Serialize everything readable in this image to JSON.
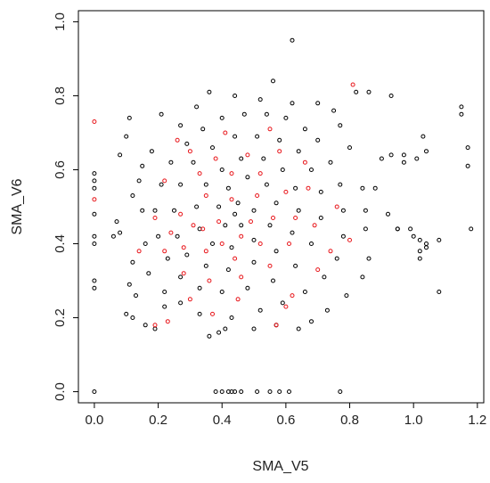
{
  "chart_data": {
    "type": "scatter",
    "title": "",
    "xlabel": "SMA_V5",
    "ylabel": "SMA_V6",
    "xlim": [
      -0.05,
      1.22
    ],
    "ylim": [
      -0.03,
      1.03
    ],
    "x_ticks": [
      0.0,
      0.2,
      0.4,
      0.6,
      0.8,
      1.0,
      1.2
    ],
    "x_tick_labels": [
      "0.0",
      "0.2",
      "0.4",
      "0.6",
      "0.8",
      "1.0",
      "1.2"
    ],
    "y_ticks": [
      0.0,
      0.2,
      0.4,
      0.6,
      0.8,
      1.0
    ],
    "y_tick_labels": [
      "0.0",
      "0.2",
      "0.4",
      "0.6",
      "0.8",
      "1.0"
    ],
    "grid": false,
    "legend": "none",
    "marker": "open-circle",
    "series": [
      {
        "color": "#000000",
        "points": [
          [
            0.0,
            0.0
          ],
          [
            0.0,
            0.28
          ],
          [
            0.0,
            0.3
          ],
          [
            0.0,
            0.4
          ],
          [
            0.0,
            0.42
          ],
          [
            0.0,
            0.48
          ],
          [
            0.0,
            0.55
          ],
          [
            0.0,
            0.57
          ],
          [
            0.0,
            0.59
          ],
          [
            0.38,
            0.0
          ],
          [
            0.4,
            0.0
          ],
          [
            0.42,
            0.0
          ],
          [
            0.43,
            0.0
          ],
          [
            0.44,
            0.0
          ],
          [
            0.46,
            0.0
          ],
          [
            0.51,
            0.0
          ],
          [
            0.55,
            0.0
          ],
          [
            0.58,
            0.0
          ],
          [
            0.61,
            0.0
          ],
          [
            0.77,
            0.0
          ],
          [
            0.62,
            0.95
          ],
          [
            0.56,
            0.84
          ],
          [
            0.82,
            0.81
          ],
          [
            0.86,
            0.81
          ],
          [
            0.93,
            0.8
          ],
          [
            0.9,
            0.63
          ],
          [
            0.93,
            0.64
          ],
          [
            0.97,
            0.64
          ],
          [
            0.97,
            0.62
          ],
          [
            1.01,
            0.63
          ],
          [
            1.03,
            0.69
          ],
          [
            1.04,
            0.65
          ],
          [
            1.15,
            0.77
          ],
          [
            1.15,
            0.75
          ],
          [
            1.17,
            0.66
          ],
          [
            1.17,
            0.61
          ],
          [
            0.95,
            0.44
          ],
          [
            0.99,
            0.44
          ],
          [
            1.0,
            0.42
          ],
          [
            1.02,
            0.41
          ],
          [
            1.02,
            0.38
          ],
          [
            1.02,
            0.36
          ],
          [
            1.04,
            0.4
          ],
          [
            1.04,
            0.39
          ],
          [
            1.08,
            0.41
          ],
          [
            1.18,
            0.44
          ],
          [
            1.08,
            0.27
          ],
          [
            0.92,
            0.48
          ],
          [
            0.95,
            0.44
          ],
          [
            0.88,
            0.55
          ],
          [
            0.07,
            0.46
          ],
          [
            0.08,
            0.43
          ],
          [
            0.06,
            0.42
          ],
          [
            0.08,
            0.64
          ],
          [
            0.1,
            0.69
          ],
          [
            0.11,
            0.74
          ],
          [
            0.12,
            0.53
          ],
          [
            0.12,
            0.35
          ],
          [
            0.11,
            0.29
          ],
          [
            0.13,
            0.26
          ],
          [
            0.1,
            0.21
          ],
          [
            0.12,
            0.2
          ],
          [
            0.16,
            0.18
          ],
          [
            0.19,
            0.17
          ],
          [
            0.22,
            0.23
          ],
          [
            0.36,
            0.15
          ],
          [
            0.39,
            0.16
          ],
          [
            0.41,
            0.17
          ],
          [
            0.5,
            0.17
          ],
          [
            0.57,
            0.18
          ],
          [
            0.64,
            0.17
          ],
          [
            0.68,
            0.19
          ],
          [
            0.73,
            0.22
          ],
          [
            0.79,
            0.26
          ],
          [
            0.84,
            0.31
          ],
          [
            0.86,
            0.36
          ],
          [
            0.85,
            0.44
          ],
          [
            0.85,
            0.49
          ],
          [
            0.84,
            0.55
          ],
          [
            0.8,
            0.66
          ],
          [
            0.77,
            0.72
          ],
          [
            0.75,
            0.76
          ],
          [
            0.7,
            0.78
          ],
          [
            0.62,
            0.78
          ],
          [
            0.52,
            0.79
          ],
          [
            0.44,
            0.8
          ],
          [
            0.36,
            0.81
          ],
          [
            0.32,
            0.77
          ],
          [
            0.27,
            0.72
          ],
          [
            0.21,
            0.75
          ],
          [
            0.18,
            0.65
          ],
          [
            0.15,
            0.61
          ],
          [
            0.14,
            0.57
          ],
          [
            0.15,
            0.49
          ],
          [
            0.16,
            0.4
          ],
          [
            0.17,
            0.32
          ],
          [
            0.22,
            0.27
          ],
          [
            0.27,
            0.24
          ],
          [
            0.33,
            0.21
          ],
          [
            0.43,
            0.2
          ],
          [
            0.52,
            0.22
          ],
          [
            0.59,
            0.24
          ],
          [
            0.66,
            0.27
          ],
          [
            0.72,
            0.31
          ],
          [
            0.76,
            0.36
          ],
          [
            0.78,
            0.42
          ],
          [
            0.78,
            0.49
          ],
          [
            0.77,
            0.56
          ],
          [
            0.74,
            0.62
          ],
          [
            0.7,
            0.68
          ],
          [
            0.66,
            0.71
          ],
          [
            0.6,
            0.74
          ],
          [
            0.54,
            0.75
          ],
          [
            0.47,
            0.75
          ],
          [
            0.4,
            0.74
          ],
          [
            0.34,
            0.71
          ],
          [
            0.29,
            0.67
          ],
          [
            0.24,
            0.62
          ],
          [
            0.21,
            0.56
          ],
          [
            0.19,
            0.49
          ],
          [
            0.2,
            0.42
          ],
          [
            0.23,
            0.36
          ],
          [
            0.27,
            0.31
          ],
          [
            0.33,
            0.28
          ],
          [
            0.4,
            0.27
          ],
          [
            0.48,
            0.28
          ],
          [
            0.56,
            0.3
          ],
          [
            0.63,
            0.34
          ],
          [
            0.68,
            0.4
          ],
          [
            0.71,
            0.47
          ],
          [
            0.71,
            0.54
          ],
          [
            0.68,
            0.6
          ],
          [
            0.64,
            0.65
          ],
          [
            0.58,
            0.68
          ],
          [
            0.51,
            0.69
          ],
          [
            0.44,
            0.69
          ],
          [
            0.37,
            0.66
          ],
          [
            0.31,
            0.62
          ],
          [
            0.27,
            0.56
          ],
          [
            0.25,
            0.49
          ],
          [
            0.26,
            0.42
          ],
          [
            0.29,
            0.37
          ],
          [
            0.35,
            0.34
          ],
          [
            0.42,
            0.33
          ],
          [
            0.5,
            0.35
          ],
          [
            0.57,
            0.38
          ],
          [
            0.62,
            0.43
          ],
          [
            0.64,
            0.49
          ],
          [
            0.63,
            0.55
          ],
          [
            0.59,
            0.6
          ],
          [
            0.53,
            0.63
          ],
          [
            0.46,
            0.63
          ],
          [
            0.4,
            0.6
          ],
          [
            0.35,
            0.56
          ],
          [
            0.32,
            0.5
          ],
          [
            0.33,
            0.44
          ],
          [
            0.37,
            0.4
          ],
          [
            0.43,
            0.39
          ],
          [
            0.5,
            0.41
          ],
          [
            0.55,
            0.45
          ],
          [
            0.57,
            0.51
          ],
          [
            0.54,
            0.56
          ],
          [
            0.48,
            0.58
          ],
          [
            0.42,
            0.55
          ],
          [
            0.39,
            0.5
          ],
          [
            0.41,
            0.45
          ],
          [
            0.46,
            0.45
          ],
          [
            0.5,
            0.49
          ],
          [
            0.45,
            0.51
          ],
          [
            0.44,
            0.48
          ]
        ]
      },
      {
        "color": "#e8161b",
        "points": [
          [
            0.0,
            0.73
          ],
          [
            0.0,
            0.52
          ],
          [
            0.81,
            0.83
          ],
          [
            0.57,
            0.18
          ],
          [
            0.37,
            0.21
          ],
          [
            0.19,
            0.18
          ],
          [
            0.23,
            0.19
          ],
          [
            0.3,
            0.25
          ],
          [
            0.45,
            0.25
          ],
          [
            0.62,
            0.26
          ],
          [
            0.7,
            0.33
          ],
          [
            0.8,
            0.41
          ],
          [
            0.76,
            0.5
          ],
          [
            0.66,
            0.62
          ],
          [
            0.55,
            0.71
          ],
          [
            0.41,
            0.7
          ],
          [
            0.3,
            0.65
          ],
          [
            0.22,
            0.57
          ],
          [
            0.19,
            0.47
          ],
          [
            0.22,
            0.38
          ],
          [
            0.28,
            0.32
          ],
          [
            0.36,
            0.3
          ],
          [
            0.46,
            0.31
          ],
          [
            0.55,
            0.34
          ],
          [
            0.61,
            0.4
          ],
          [
            0.63,
            0.47
          ],
          [
            0.6,
            0.54
          ],
          [
            0.52,
            0.59
          ],
          [
            0.43,
            0.59
          ],
          [
            0.35,
            0.53
          ],
          [
            0.31,
            0.45
          ],
          [
            0.35,
            0.38
          ],
          [
            0.44,
            0.36
          ],
          [
            0.52,
            0.4
          ],
          [
            0.56,
            0.47
          ],
          [
            0.51,
            0.53
          ],
          [
            0.43,
            0.52
          ],
          [
            0.39,
            0.46
          ],
          [
            0.46,
            0.42
          ],
          [
            0.49,
            0.46
          ],
          [
            0.27,
            0.48
          ],
          [
            0.24,
            0.43
          ],
          [
            0.33,
            0.59
          ],
          [
            0.38,
            0.63
          ],
          [
            0.58,
            0.65
          ],
          [
            0.67,
            0.55
          ],
          [
            0.69,
            0.45
          ],
          [
            0.26,
            0.68
          ],
          [
            0.14,
            0.38
          ],
          [
            0.4,
            0.4
          ],
          [
            0.6,
            0.23
          ],
          [
            0.74,
            0.38
          ],
          [
            0.28,
            0.39
          ],
          [
            0.48,
            0.64
          ],
          [
            0.34,
            0.44
          ]
        ]
      }
    ]
  }
}
